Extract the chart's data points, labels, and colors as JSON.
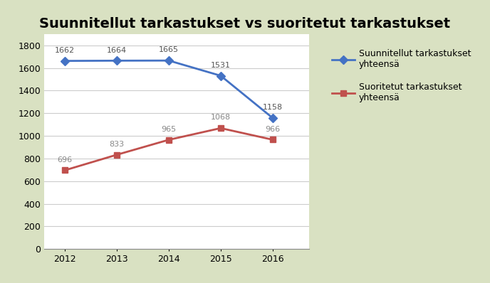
{
  "title": "Suunnitellut tarkastukset vs suoritetut tarkastukset",
  "years": [
    2012,
    2013,
    2014,
    2015,
    2016
  ],
  "planned": [
    1662,
    1664,
    1665,
    1531,
    1158
  ],
  "executed": [
    696,
    833,
    965,
    1068,
    966
  ],
  "planned_label": "Suunnitellut tarkastukset\nyhteensä",
  "executed_label": "Suoritetut tarkastukset\nyhteensä",
  "planned_color": "#4472C4",
  "executed_color": "#C0504D",
  "bg_color": "#D9E1C2",
  "plot_bg_color": "#FFFFFF",
  "ylim": [
    0,
    1900
  ],
  "yticks": [
    0,
    200,
    400,
    600,
    800,
    1000,
    1200,
    1400,
    1600,
    1800
  ],
  "title_fontsize": 14,
  "label_fontsize": 9,
  "annotation_fontsize": 8,
  "legend_fontsize": 9
}
